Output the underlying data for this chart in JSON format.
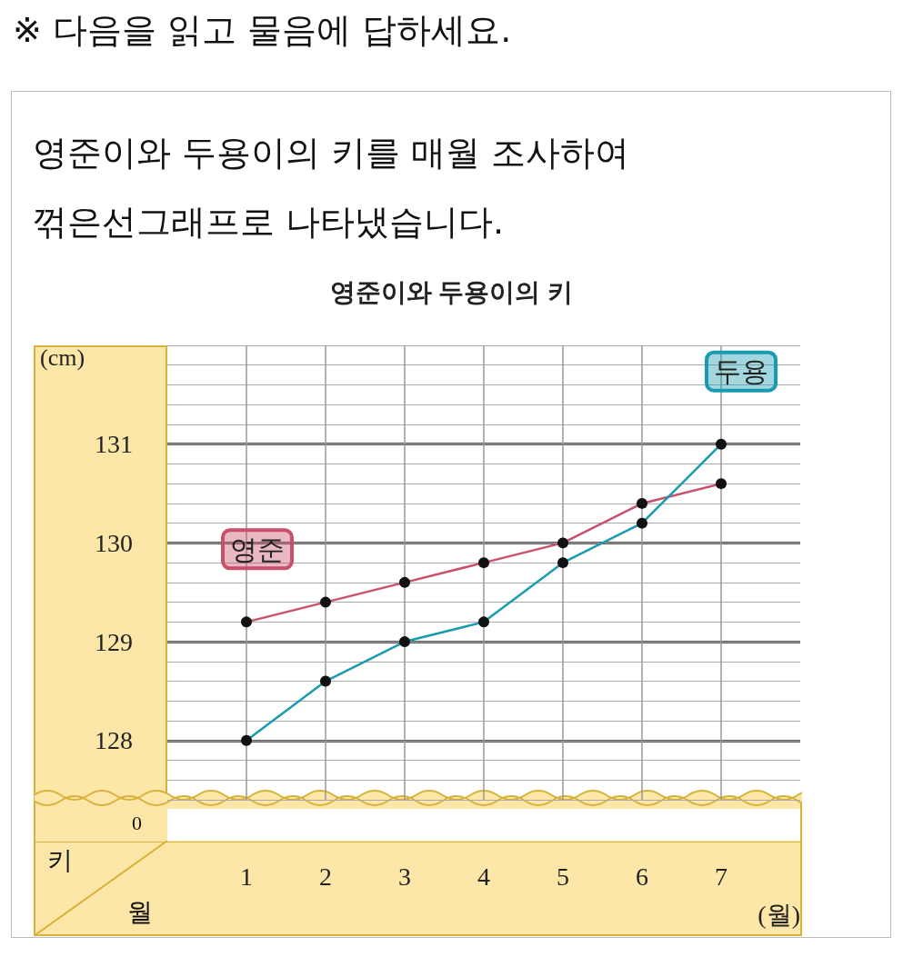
{
  "chart_data": {
    "type": "line",
    "title": "영준이와 두용이의 키",
    "xlabel": "(월)",
    "ylabel": "(cm)",
    "annotations": [
      "※ 다음을 읽고 물음에 답하세요.",
      "영준이와 두용이의 키를 매월 조사하여\n꺾은선그래프로 나타냈습니다.",
      "0",
      "키",
      "월"
    ],
    "x": [
      1,
      2,
      3,
      4,
      5,
      6,
      7
    ],
    "xlim": [
      0,
      8
    ],
    "xticks": [
      1,
      2,
      3,
      4,
      5,
      6,
      7
    ],
    "ylim": [
      127.4,
      132
    ],
    "yticks": [
      128,
      129,
      130,
      131
    ],
    "grid": true,
    "marker": "circle",
    "line_style": "solid",
    "series": [
      {
        "name": "영준",
        "color": "#c9506a",
        "values": [
          129.2,
          129.4,
          129.6,
          129.8,
          130.0,
          130.4,
          130.6
        ]
      },
      {
        "name": "두용",
        "color": "#1a9cb0",
        "values": [
          128.0,
          128.6,
          129.0,
          129.2,
          129.8,
          130.2,
          131.0
        ]
      }
    ]
  }
}
